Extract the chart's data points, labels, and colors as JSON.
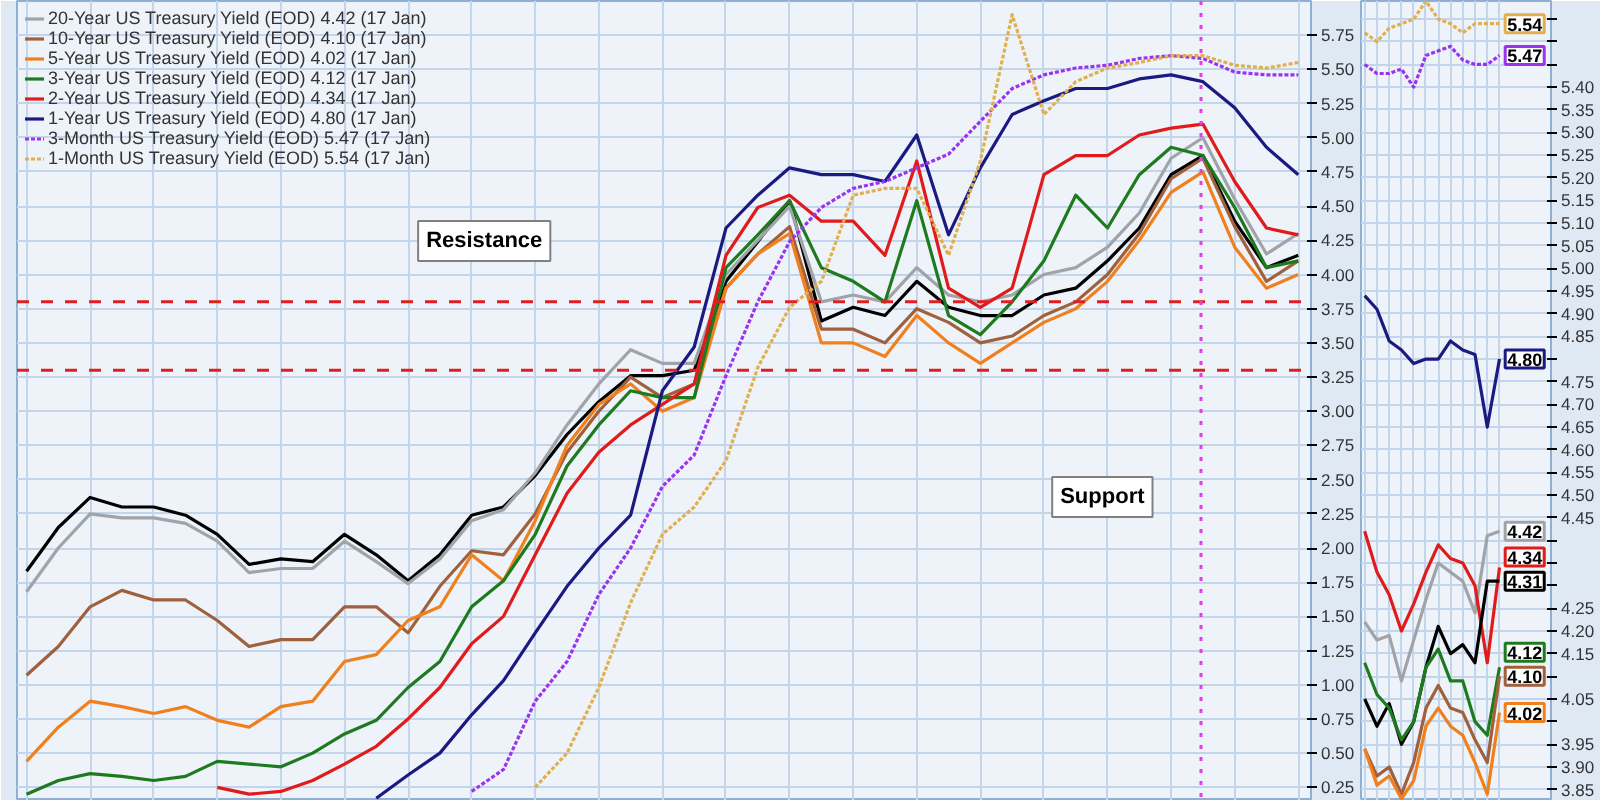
{
  "chart_data": [
    {
      "type": "line",
      "categories": [
        null,
        null,
        null,
        null,
        null,
        null,
        null,
        null,
        null,
        null,
        null,
        null,
        null,
        null,
        null,
        null,
        null,
        null,
        null,
        null,
        null,
        null,
        null,
        null,
        null,
        null,
        null,
        null,
        null,
        null,
        null,
        null,
        null,
        null,
        null,
        null,
        null,
        null,
        null,
        null,
        null
      ],
      "ylim": [
        0.15,
        6.0
      ],
      "yticks": [
        {
          "value": 0.25,
          "label": "0.25"
        },
        {
          "value": 0.5,
          "label": "0.50"
        },
        {
          "value": 0.75,
          "label": "0.75"
        },
        {
          "value": 1.0,
          "label": "1.00"
        },
        {
          "value": 1.25,
          "label": "1.25"
        },
        {
          "value": 1.5,
          "label": "1.50"
        },
        {
          "value": 1.75,
          "label": "1.75"
        },
        {
          "value": 2.0,
          "label": "2.00"
        },
        {
          "value": 2.25,
          "label": "2.25"
        },
        {
          "value": 2.5,
          "label": "2.50"
        },
        {
          "value": 2.75,
          "label": "2.75"
        },
        {
          "value": 3.0,
          "label": "3.00"
        },
        {
          "value": 3.25,
          "label": "3.25"
        },
        {
          "value": 3.5,
          "label": "3.50"
        },
        {
          "value": 3.75,
          "label": "3.75"
        },
        {
          "value": 4.0,
          "label": "4.00"
        },
        {
          "value": 4.25,
          "label": "4.25"
        },
        {
          "value": 4.5,
          "label": "4.50"
        },
        {
          "value": 4.75,
          "label": "4.75"
        },
        {
          "value": 5.0,
          "label": "5.00"
        },
        {
          "value": 5.25,
          "label": "5.25"
        },
        {
          "value": 5.5,
          "label": "5.50"
        },
        {
          "value": 5.75,
          "label": "5.75"
        }
      ],
      "tick_labels": "y",
      "grid": true,
      "legend": "top left",
      "marker": "none",
      "series": [
        {
          "color": "#000000",
          "values": [
            1.83,
            2.15,
            2.37,
            2.3,
            2.3,
            2.24,
            2.1,
            1.88,
            1.92,
            1.9,
            2.1,
            1.95,
            1.76,
            1.95,
            2.24,
            2.3,
            2.53,
            2.83,
            3.07,
            3.26,
            3.26,
            3.3,
            3.95,
            4.24,
            4.54,
            3.66,
            3.76,
            3.7,
            3.95,
            3.76,
            3.7,
            3.7,
            3.85,
            3.9,
            4.1,
            4.34,
            4.73,
            4.87,
            4.39,
            4.05,
            4.14
          ]
        },
        {
          "name": "20-Year US Treasury Yield (EOD) 4.42 (17 Jan)",
          "color": "#a0a4a8",
          "values": [
            1.68,
            2.0,
            2.25,
            2.22,
            2.22,
            2.18,
            2.05,
            1.82,
            1.85,
            1.85,
            2.05,
            1.9,
            1.74,
            1.92,
            2.2,
            2.28,
            2.55,
            2.9,
            3.2,
            3.45,
            3.35,
            3.35,
            4.0,
            4.25,
            4.5,
            3.8,
            3.85,
            3.8,
            4.05,
            3.85,
            3.8,
            3.85,
            4.0,
            4.05,
            4.2,
            4.45,
            4.85,
            5.0,
            4.55,
            4.15,
            4.3
          ]
        },
        {
          "name": "10-Year US Treasury Yield (EOD) 4.10 (17 Jan)",
          "color": "#a0603c",
          "values": [
            1.07,
            1.28,
            1.57,
            1.69,
            1.62,
            1.62,
            1.47,
            1.28,
            1.33,
            1.33,
            1.57,
            1.57,
            1.38,
            1.72,
            1.98,
            1.95,
            2.25,
            2.7,
            3.0,
            3.25,
            3.1,
            3.2,
            3.9,
            4.15,
            4.35,
            3.6,
            3.6,
            3.5,
            3.75,
            3.65,
            3.5,
            3.55,
            3.7,
            3.8,
            4.0,
            4.3,
            4.7,
            4.85,
            4.35,
            3.95,
            4.1
          ]
        },
        {
          "name": "5-Year US Treasury Yield (EOD) 4.02 (17 Jan)",
          "color": "#f0801e",
          "values": [
            0.44,
            0.69,
            0.88,
            0.84,
            0.79,
            0.84,
            0.74,
            0.69,
            0.84,
            0.88,
            1.17,
            1.22,
            1.47,
            1.57,
            1.95,
            1.76,
            2.2,
            2.75,
            3.05,
            3.2,
            3.0,
            3.1,
            3.9,
            4.15,
            4.3,
            3.5,
            3.5,
            3.4,
            3.7,
            3.5,
            3.35,
            3.5,
            3.65,
            3.75,
            3.95,
            4.25,
            4.6,
            4.75,
            4.2,
            3.9,
            4.0
          ]
        },
        {
          "name": "3-Year US Treasury Yield (EOD) 4.12 (17 Jan)",
          "color": "#1e7a1e",
          "values": [
            0.2,
            0.3,
            0.35,
            0.33,
            0.3,
            0.33,
            0.44,
            0.42,
            0.4,
            0.5,
            0.64,
            0.74,
            0.98,
            1.17,
            1.57,
            1.76,
            2.1,
            2.6,
            2.9,
            3.15,
            3.1,
            3.1,
            4.05,
            4.29,
            4.54,
            4.05,
            3.95,
            3.8,
            4.54,
            3.7,
            3.56,
            3.8,
            4.1,
            4.58,
            4.34,
            4.73,
            4.93,
            4.87,
            4.49,
            4.05,
            4.1
          ]
        },
        {
          "name": "2-Year US Treasury Yield (EOD) 4.34 (17 Jan)",
          "color": "#e01b1b",
          "values": [
            null,
            null,
            null,
            null,
            null,
            null,
            0.25,
            0.2,
            0.22,
            0.3,
            0.42,
            0.55,
            0.75,
            0.98,
            1.3,
            1.5,
            1.95,
            2.4,
            2.7,
            2.9,
            3.05,
            3.2,
            4.14,
            4.49,
            4.58,
            4.39,
            4.39,
            4.14,
            4.83,
            3.9,
            3.76,
            3.9,
            4.73,
            4.87,
            4.87,
            5.02,
            5.07,
            5.1,
            4.68,
            4.34,
            4.29
          ]
        },
        {
          "name": "1-Year US Treasury Yield (EOD) 4.80 (17 Jan)",
          "color": "#1a1a80",
          "values": [
            null,
            null,
            null,
            null,
            null,
            null,
            null,
            null,
            null,
            null,
            null,
            0.17,
            0.34,
            0.5,
            0.78,
            1.03,
            1.38,
            1.72,
            2.0,
            2.24,
            3.15,
            3.47,
            4.34,
            4.58,
            4.78,
            4.73,
            4.73,
            4.68,
            5.02,
            4.29,
            4.78,
            5.17,
            5.27,
            5.36,
            5.36,
            5.43,
            5.46,
            5.41,
            5.22,
            4.93,
            4.73
          ]
        },
        {
          "name": "3-Month US Treasury Yield (EOD) 5.47 (17 Jan)",
          "color": "#9933ee",
          "line_style": "dotted",
          "values": [
            null,
            null,
            null,
            null,
            null,
            null,
            null,
            null,
            null,
            null,
            null,
            null,
            null,
            null,
            0.22,
            0.38,
            0.88,
            1.17,
            1.66,
            2.0,
            2.45,
            2.68,
            3.26,
            3.8,
            4.24,
            4.49,
            4.63,
            4.68,
            4.78,
            4.88,
            5.12,
            5.36,
            5.46,
            5.51,
            5.53,
            5.58,
            5.6,
            5.58,
            5.48,
            5.46,
            5.46
          ]
        },
        {
          "name": "1-Month US Treasury Yield (EOD) 5.54 (17 Jan)",
          "color": "#e0b050",
          "line_style": "dotted",
          "values": [
            null,
            null,
            null,
            null,
            null,
            null,
            null,
            null,
            null,
            null,
            null,
            null,
            null,
            null,
            null,
            null,
            0.25,
            0.5,
            0.98,
            1.6,
            2.1,
            2.3,
            2.64,
            3.32,
            3.76,
            3.95,
            4.58,
            4.63,
            4.63,
            4.14,
            4.83,
            5.9,
            5.17,
            5.41,
            5.51,
            5.55,
            5.6,
            5.6,
            5.53,
            5.51,
            5.55
          ]
        }
      ],
      "ref_lines": [
        {
          "axis": "y",
          "value": 3.8,
          "color": "#e02020",
          "line_style": "dashed"
        },
        {
          "axis": "y",
          "value": 3.3,
          "color": "#e02020",
          "line_style": "dashed"
        }
      ],
      "annotations": [
        "Resistance",
        "Support"
      ]
    },
    {
      "type": "line",
      "categories": [
        null,
        null,
        null,
        null,
        null,
        null,
        null,
        null,
        null,
        null,
        null,
        null
      ],
      "ylim": [
        3.825,
        5.59
      ],
      "yticks": [
        {
          "value": 3.85,
          "label": "3.85"
        },
        {
          "value": 3.9,
          "label": "3.90"
        },
        {
          "value": 3.95,
          "label": "3.95"
        },
        {
          "value": 4.0,
          "label": null
        },
        {
          "value": 4.05,
          "label": "4.05"
        },
        {
          "value": 4.1,
          "label": null
        },
        {
          "value": 4.15,
          "label": "4.15"
        },
        {
          "value": 4.2,
          "label": "4.20"
        },
        {
          "value": 4.25,
          "label": "4.25"
        },
        {
          "value": 4.3,
          "label": null
        },
        {
          "value": 4.35,
          "label": null
        },
        {
          "value": 4.4,
          "label": null
        },
        {
          "value": 4.45,
          "label": "4.45"
        },
        {
          "value": 4.5,
          "label": "4.50"
        },
        {
          "value": 4.55,
          "label": "4.55"
        },
        {
          "value": 4.6,
          "label": "4.60"
        },
        {
          "value": 4.65,
          "label": "4.65"
        },
        {
          "value": 4.7,
          "label": "4.70"
        },
        {
          "value": 4.75,
          "label": "4.75"
        },
        {
          "value": 4.8,
          "label": null
        },
        {
          "value": 4.85,
          "label": "4.85"
        },
        {
          "value": 4.9,
          "label": "4.90"
        },
        {
          "value": 4.95,
          "label": "4.95"
        },
        {
          "value": 5.0,
          "label": "5.00"
        },
        {
          "value": 5.05,
          "label": "5.05"
        },
        {
          "value": 5.1,
          "label": "5.10"
        },
        {
          "value": 5.15,
          "label": "5.15"
        },
        {
          "value": 5.2,
          "label": "5.20"
        },
        {
          "value": 5.25,
          "label": "5.25"
        },
        {
          "value": 5.3,
          "label": "5.30"
        },
        {
          "value": 5.35,
          "label": "5.35"
        },
        {
          "value": 5.4,
          "label": "5.40"
        },
        {
          "value": 5.45,
          "label": null
        },
        {
          "value": 5.5,
          "label": null
        },
        {
          "value": 5.55,
          "label": null
        }
      ],
      "tick_labels": "y",
      "grid": true,
      "marker": "none",
      "series": [
        {
          "color": "#e0b050",
          "line_style": "dotted",
          "values": [
            5.52,
            5.5,
            5.53,
            5.54,
            5.55,
            5.59,
            5.55,
            5.54,
            5.52,
            5.54,
            5.54,
            5.54
          ],
          "value_labels": [
            null,
            null,
            null,
            null,
            null,
            null,
            null,
            null,
            null,
            null,
            null,
            "5.54"
          ]
        },
        {
          "color": "#9933ee",
          "line_style": "dotted",
          "values": [
            5.45,
            5.43,
            5.43,
            5.44,
            5.4,
            5.47,
            5.48,
            5.49,
            5.46,
            5.45,
            5.45,
            5.47
          ],
          "value_labels": [
            null,
            null,
            null,
            null,
            null,
            null,
            null,
            null,
            null,
            null,
            null,
            "5.47"
          ]
        },
        {
          "color": "#1a1a80",
          "values": [
            4.94,
            4.91,
            4.84,
            4.82,
            4.79,
            4.8,
            4.8,
            4.84,
            4.82,
            4.81,
            4.65,
            4.8
          ],
          "value_labels": [
            null,
            null,
            null,
            null,
            null,
            null,
            null,
            null,
            null,
            null,
            null,
            "4.80"
          ]
        },
        {
          "color": "#a0a4a8",
          "values": [
            4.22,
            4.18,
            4.19,
            4.09,
            4.18,
            4.27,
            4.35,
            4.33,
            4.31,
            4.24,
            4.41,
            4.42
          ],
          "value_labels": [
            null,
            null,
            null,
            null,
            null,
            null,
            null,
            null,
            null,
            null,
            null,
            "4.42"
          ]
        },
        {
          "color": "#e01b1b",
          "values": [
            4.42,
            4.33,
            4.28,
            4.2,
            4.26,
            4.33,
            4.39,
            4.36,
            4.35,
            4.3,
            4.13,
            4.34
          ],
          "value_labels": [
            null,
            null,
            null,
            null,
            null,
            null,
            null,
            null,
            null,
            null,
            null,
            "4.34"
          ]
        },
        {
          "color": "#000000",
          "values": [
            4.05,
            3.99,
            4.04,
            3.95,
            4.0,
            4.12,
            4.21,
            4.15,
            4.17,
            4.13,
            4.31,
            4.31
          ],
          "value_labels": [
            null,
            null,
            null,
            null,
            null,
            null,
            null,
            null,
            null,
            null,
            null,
            "4.31"
          ]
        },
        {
          "color": "#1e7a1e",
          "values": [
            4.13,
            4.06,
            4.03,
            3.96,
            4.0,
            4.12,
            4.16,
            4.09,
            4.09,
            4.0,
            3.97,
            4.12
          ],
          "value_labels": [
            null,
            null,
            null,
            null,
            null,
            null,
            null,
            null,
            null,
            null,
            null,
            "4.12"
          ]
        },
        {
          "color": "#a0603c",
          "values": [
            3.94,
            3.88,
            3.9,
            3.84,
            3.91,
            4.03,
            4.08,
            4.03,
            4.02,
            3.96,
            3.91,
            4.1
          ],
          "value_labels": [
            null,
            null,
            null,
            null,
            null,
            null,
            null,
            null,
            null,
            null,
            null,
            "4.10"
          ]
        },
        {
          "color": "#f0801e",
          "values": [
            3.94,
            3.86,
            3.88,
            3.83,
            3.87,
            3.99,
            4.03,
            3.99,
            3.97,
            3.91,
            3.84,
            4.02
          ],
          "value_labels": [
            null,
            null,
            null,
            null,
            null,
            null,
            null,
            null,
            null,
            null,
            null,
            "4.02"
          ]
        }
      ]
    }
  ]
}
